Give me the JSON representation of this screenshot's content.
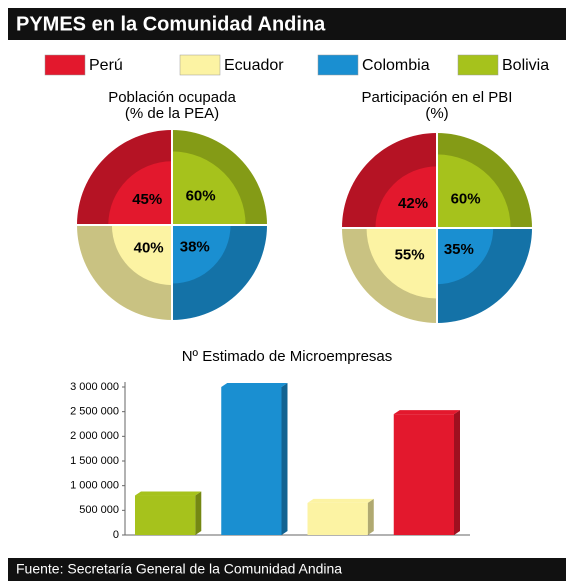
{
  "title": "PYMES en la Comunidad Andina",
  "legend": {
    "names": [
      "Perú",
      "Ecuador",
      "Colombia",
      "Bolivia"
    ],
    "colors": [
      "#e3182d",
      "#fcf3a3",
      "#1a8fd1",
      "#a6c21c"
    ]
  },
  "chart_data": [
    {
      "type": "polar",
      "title": "Población ocupada",
      "subtitle": "(% de la PEA)",
      "values": [
        45,
        40,
        38,
        60
      ],
      "value_labels": [
        "45%",
        "40%",
        "38%",
        "60%"
      ],
      "rlim": [
        0,
        100
      ]
    },
    {
      "type": "polar",
      "title": "Participación en el PBI",
      "subtitle": "(%)",
      "values": [
        42,
        55,
        35,
        60
      ],
      "value_labels": [
        "42%",
        "55%",
        "35%",
        "60%"
      ],
      "rlim": [
        0,
        100
      ]
    },
    {
      "type": "bar",
      "title": "Nº Estimado de Microempresas",
      "categories": [
        null,
        null,
        null,
        null
      ],
      "values": [
        800000,
        3000000,
        650000,
        2450000
      ],
      "colors": [
        "#a6c21c",
        "#1a8fd1",
        "#fcf3a3",
        "#e3182d"
      ],
      "ylim": [
        0,
        3000000
      ],
      "yticks": [
        0,
        {
          "value": 500000,
          "label": "500 000"
        },
        {
          "value": 1000000,
          "label": "1 000 000"
        },
        {
          "value": 1500000,
          "label": "1 500 000"
        },
        {
          "value": 2000000,
          "label": "2 000 000"
        },
        {
          "value": 2500000,
          "label": "2 500 000"
        },
        {
          "value": 3000000,
          "label": "3 000 000"
        }
      ]
    }
  ],
  "footer": "Fuente:  Secretaría General de la Comunidad Andina"
}
